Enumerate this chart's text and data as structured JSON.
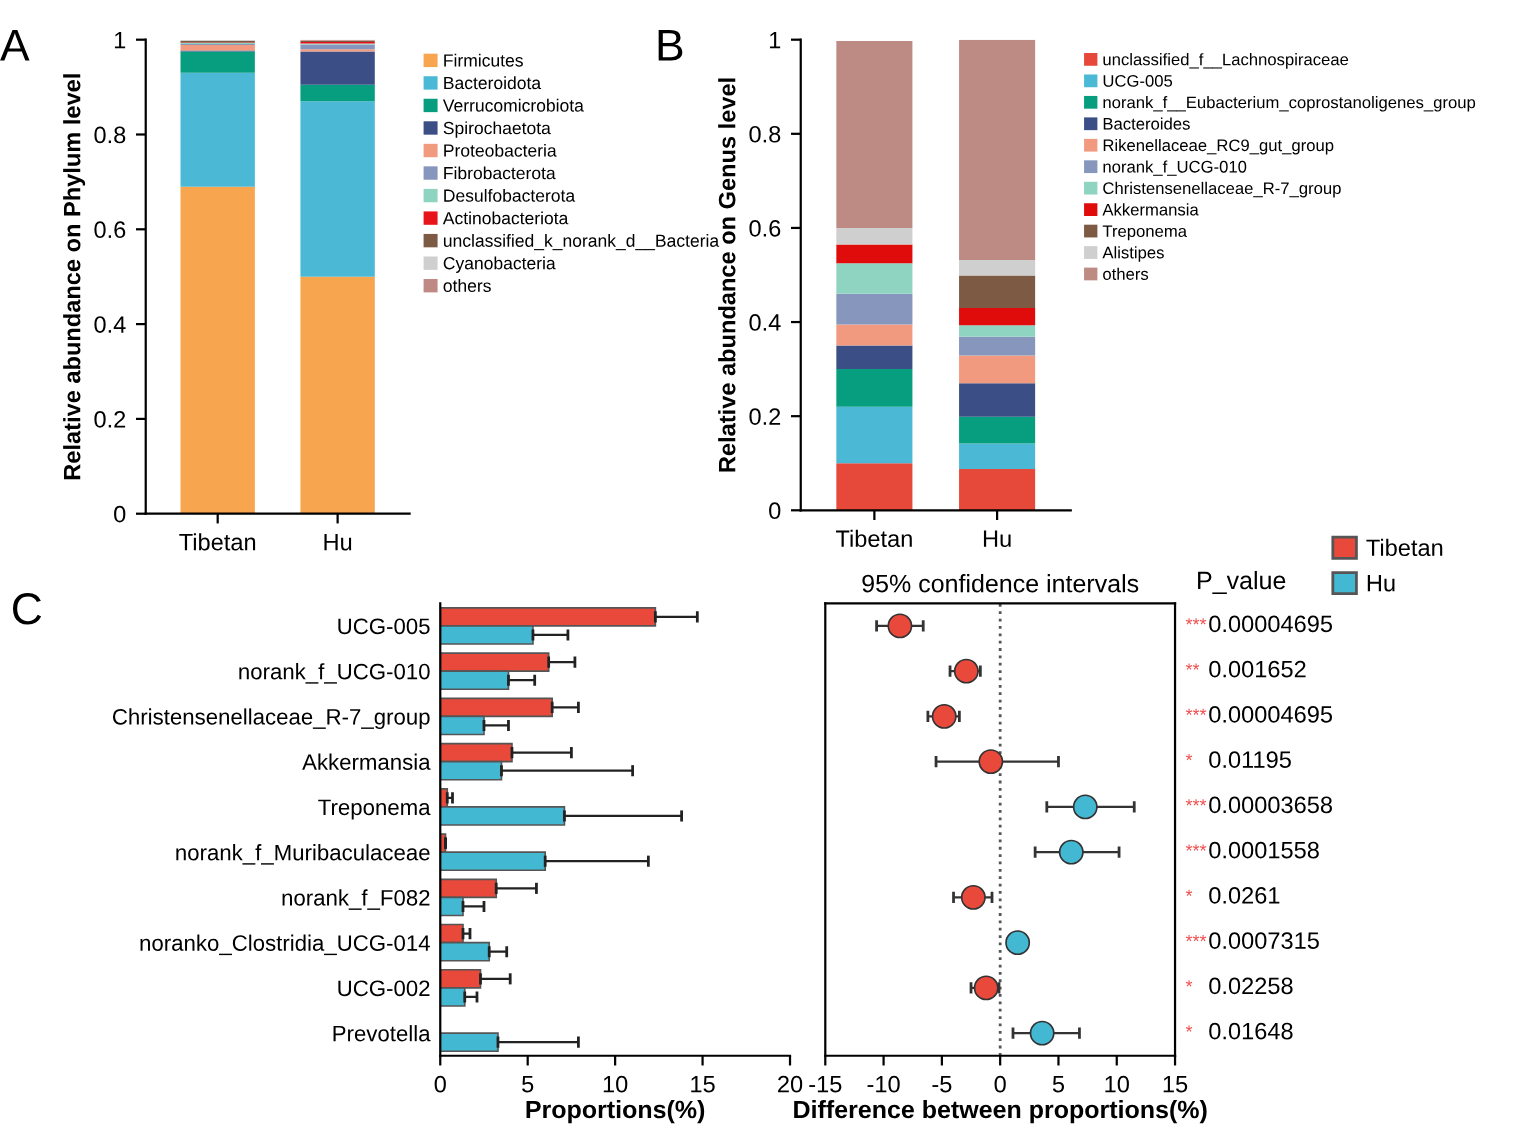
{
  "chart_data": [
    {
      "type": "bar",
      "stacked": true,
      "ylabel": "Relative abundance on Phylum level",
      "categories": [
        "Tibetan",
        "Hu"
      ],
      "ylim": [
        0,
        1
      ],
      "yticks": [
        0,
        0.2,
        0.4,
        0.6,
        0.8,
        1
      ],
      "legend": "right",
      "grid": false,
      "annotations": [
        "A"
      ],
      "series": [
        {
          "name": "Firmicutes",
          "color": "#f8a54f",
          "values": [
            0.69,
            0.5
          ]
        },
        {
          "name": "Bacteroidota",
          "color": "#4bb9d6",
          "values": [
            0.24,
            0.37
          ]
        },
        {
          "name": "Verrucomicrobiota",
          "color": "#069e7f",
          "values": [
            0.045,
            0.035
          ]
        },
        {
          "name": "Spirochaetota",
          "color": "#3b4f86",
          "values": [
            0.002,
            0.07
          ]
        },
        {
          "name": "Proteobacteria",
          "color": "#f29a7f",
          "values": [
            0.012,
            0.005
          ]
        },
        {
          "name": "Fibrobacterota",
          "color": "#8696bd",
          "values": [
            0.002,
            0.01
          ]
        },
        {
          "name": "Desulfobacterota",
          "color": "#8fd3c1",
          "values": [
            0.002,
            0.002
          ]
        },
        {
          "name": "Actinobacteriota",
          "color": "#e8141b",
          "values": [
            0.001,
            0.003
          ]
        },
        {
          "name": "unclassified_k_norank_d__Bacteria",
          "color": "#7d5a43",
          "values": [
            0.004,
            0.002
          ]
        },
        {
          "name": "Cyanobacteria",
          "color": "#cfcfcf",
          "values": [
            0.001,
            0.001
          ]
        },
        {
          "name": "others",
          "color": "#bf8a83",
          "values": [
            null,
            0.002
          ]
        }
      ]
    },
    {
      "type": "bar",
      "stacked": true,
      "ylabel": "Relative abundance on Genus level",
      "categories": [
        "Tibetan",
        "Hu"
      ],
      "ylim": [
        0,
        1
      ],
      "yticks": [
        0,
        0.2,
        0.4,
        0.6,
        0.8,
        1
      ],
      "legend": "right",
      "grid": false,
      "annotations": [
        "B"
      ],
      "series": [
        {
          "name": "unclassified_f__Lachnospiraceae",
          "color": "#e6493a",
          "values": [
            0.1,
            0.088
          ]
        },
        {
          "name": "UCG-005",
          "color": "#4bb9d6",
          "values": [
            0.12,
            0.054
          ]
        },
        {
          "name": "norank_f__Eubacterium_coprostanoligenes_group",
          "color": "#069e7f",
          "values": [
            0.08,
            0.057
          ]
        },
        {
          "name": "Bacteroides",
          "color": "#3b4f86",
          "values": [
            0.05,
            0.071
          ]
        },
        {
          "name": "Rikenellaceae_RC9_gut_group",
          "color": "#f29a7f",
          "values": [
            0.045,
            0.059
          ]
        },
        {
          "name": "norank_f_UCG-010",
          "color": "#8696bd",
          "values": [
            0.065,
            0.04
          ]
        },
        {
          "name": "Christensenellaceae_R-7_group",
          "color": "#8fd3c1",
          "values": [
            0.065,
            0.024
          ]
        },
        {
          "name": "Akkermansia",
          "color": "#e00b0b",
          "values": [
            0.04,
            0.037
          ]
        },
        {
          "name": "Treponema",
          "color": "#7d5a43",
          "values": [
            0,
            0.069
          ]
        },
        {
          "name": "Alistipes",
          "color": "#cfcfcf",
          "values": [
            0.035,
            0.033
          ]
        },
        {
          "name": "others",
          "color": "#bd8b84",
          "values": [
            0.397,
            0.468
          ]
        }
      ]
    },
    {
      "type": "bar",
      "orientation": "horizontal",
      "xlabel": "Proportions(%)",
      "categories": [
        "UCG-005",
        "norank_f_UCG-010",
        "Christensenellaceae_R-7_group",
        "Akkermansia",
        "Treponema",
        "norank_f_Muribaculaceae",
        "norank_f_F082",
        "noranko_Clostridia_UCG-014",
        "UCG-002",
        "Prevotella"
      ],
      "xlim": [
        0,
        20
      ],
      "xticks": [
        0,
        5,
        10,
        15,
        20
      ],
      "legend": "right",
      "grid": false,
      "annotations": [
        "C"
      ],
      "series": [
        {
          "name": "Tibetan",
          "color": "#e8493a",
          "values": [
            12.3,
            6.2,
            6.4,
            4.1,
            0.4,
            0.3,
            3.2,
            1.3,
            2.3,
            null
          ],
          "errors": [
            [
              12.3,
              14.7
            ],
            [
              6.2,
              7.7
            ],
            [
              6.4,
              7.9
            ],
            [
              4.1,
              7.5
            ],
            [
              0.4,
              0.7
            ],
            null,
            [
              3.2,
              5.5
            ],
            [
              1.3,
              1.7
            ],
            [
              2.3,
              4.0
            ],
            null
          ]
        },
        {
          "name": "Hu",
          "color": "#43b8d3",
          "values": [
            5.3,
            3.9,
            2.5,
            3.5,
            7.1,
            6.0,
            1.3,
            2.8,
            1.4,
            3.3
          ],
          "errors": [
            [
              5.3,
              7.3
            ],
            [
              3.9,
              5.4
            ],
            [
              2.5,
              3.9
            ],
            [
              3.5,
              11.0
            ],
            [
              7.1,
              13.8
            ],
            [
              6.0,
              11.9
            ],
            [
              1.3,
              2.5
            ],
            [
              2.8,
              3.8
            ],
            [
              1.4,
              2.1
            ],
            [
              3.3,
              7.9
            ]
          ]
        }
      ]
    },
    {
      "type": "scatter",
      "orientation": "horizontal",
      "title": "95% confidence intervals",
      "xlabel": "Difference between proportions(%)",
      "categories": [
        null,
        null,
        null,
        null,
        null,
        null,
        null,
        null,
        null,
        null
      ],
      "xlim": [
        -15,
        15
      ],
      "xticks": [
        -15,
        -10,
        -5,
        0,
        5,
        10,
        15
      ],
      "tick_labels": "x",
      "marker": "circle",
      "grid": false,
      "values": [
        -8.6,
        -2.9,
        -4.8,
        -0.8,
        7.3,
        6.1,
        -2.3,
        1.5,
        -1.2,
        3.6
      ],
      "colors": [
        "#e8493a",
        "#e8493a",
        "#e8493a",
        "#e8493a",
        "#43b8d3",
        "#43b8d3",
        "#e8493a",
        "#43b8d3",
        "#e8493a",
        "#43b8d3"
      ],
      "errors": [
        [
          -10.6,
          -6.6
        ],
        [
          -4.3,
          -1.7
        ],
        [
          -6.2,
          -3.5
        ],
        [
          -5.5,
          5.0
        ],
        [
          4.0,
          11.5
        ],
        [
          3.0,
          10.2
        ],
        [
          -4.0,
          -0.7
        ],
        [
          0.9,
          2.2
        ],
        [
          -2.5,
          -0.1
        ],
        [
          1.1,
          6.8
        ]
      ],
      "ref_lines": [
        {
          "axis": "x",
          "value": 0,
          "line_style": "dotted",
          "color": "#555555"
        }
      ],
      "annotations": [
        "P_value",
        "***",
        "0.00004695",
        "**",
        "0.001652",
        "***",
        "0.00004695",
        "*",
        "0.01195",
        "***",
        "0.00003658",
        "***",
        "0.0001558",
        "*",
        "0.0261",
        "***",
        "0.0007315",
        "*",
        "0.02258",
        "*",
        "0.01648"
      ]
    }
  ]
}
